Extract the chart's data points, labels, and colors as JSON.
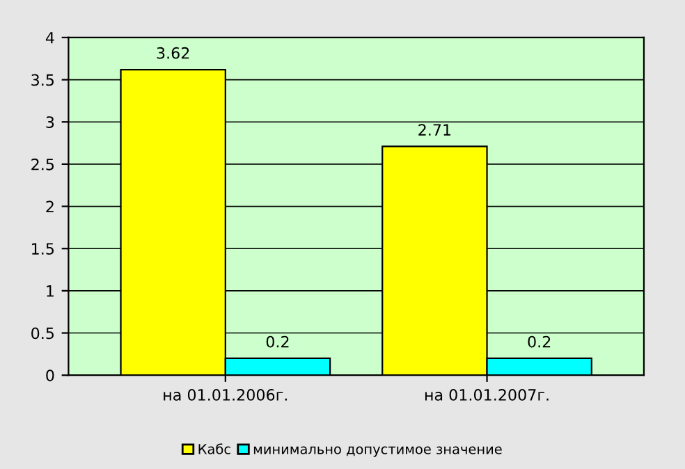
{
  "chart_data": {
    "type": "bar",
    "categories": [
      "на 01.01.2006г.",
      "на 01.01.2007г."
    ],
    "series": [
      {
        "name": "Кабс",
        "color": "#ffff00",
        "values": [
          3.62,
          2.71
        ]
      },
      {
        "name": "минимально допустимое значение",
        "color": "#00ffff",
        "values": [
          0.2,
          0.2
        ]
      }
    ],
    "ylim": [
      0,
      4
    ],
    "yticks": [
      0,
      0.5,
      1,
      1.5,
      2,
      2.5,
      3,
      3.5,
      4
    ],
    "grid": "y",
    "legend": "bottom",
    "data_labels": true
  }
}
